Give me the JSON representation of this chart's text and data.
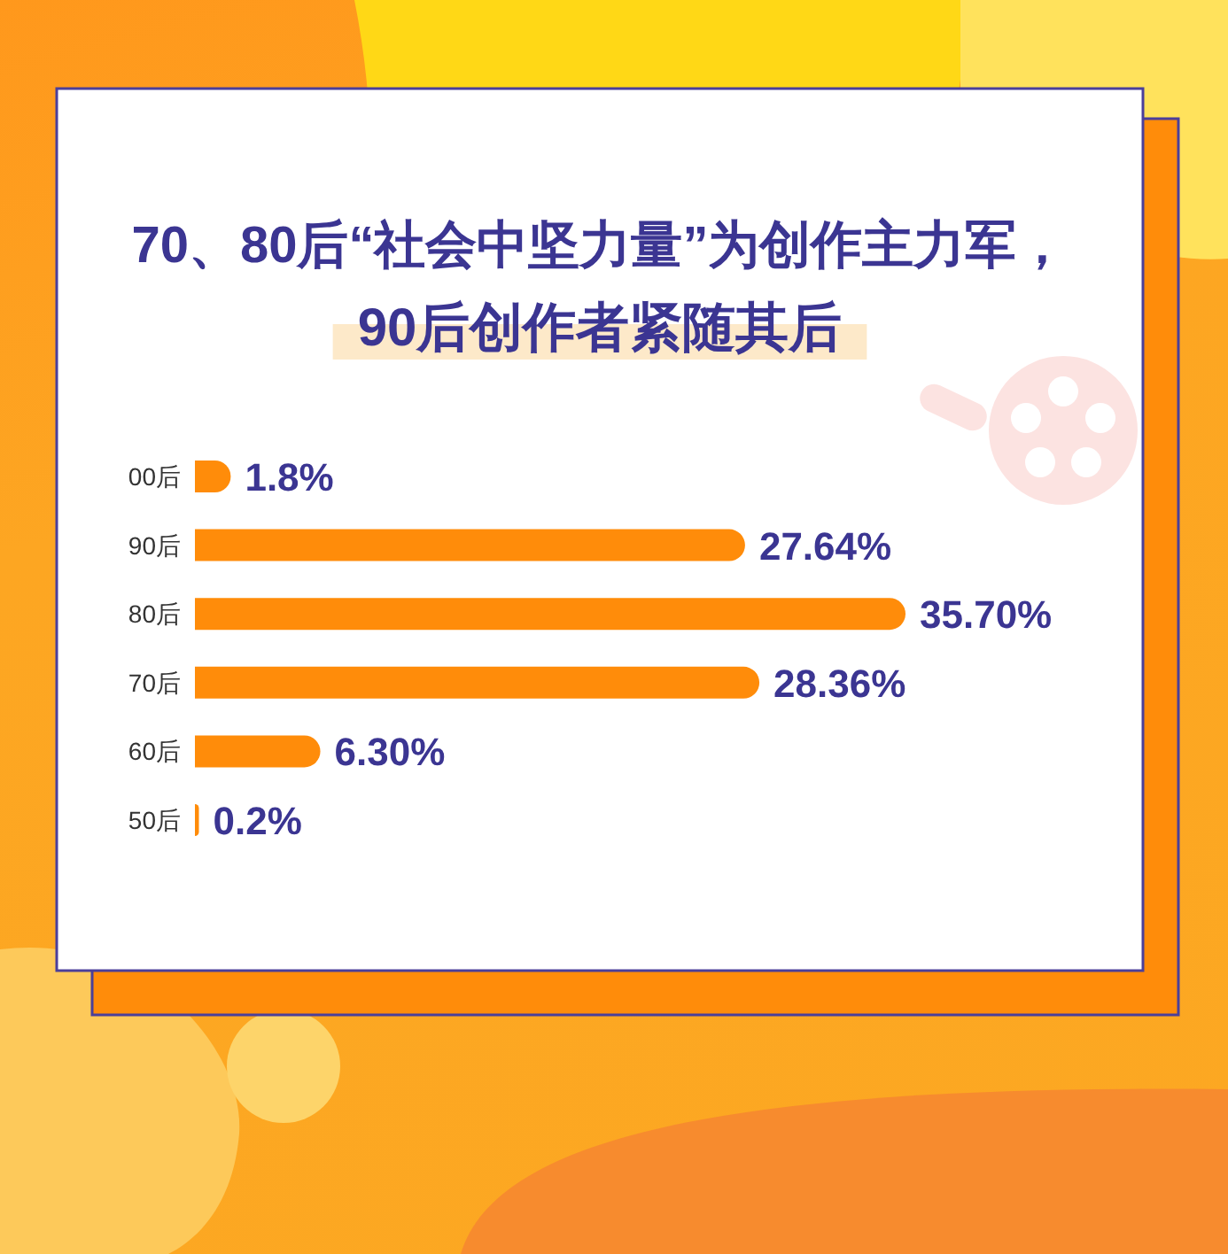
{
  "chart_data": {
    "type": "bar",
    "orientation": "horizontal",
    "title": "70、80后“社会中坚力量”为创作主力军，",
    "subtitle": "90后创作者紧随其后",
    "categories": [
      "00后",
      "90后",
      "80后",
      "70后",
      "60后",
      "50后"
    ],
    "values": [
      1.8,
      27.64,
      35.7,
      28.36,
      6.3,
      0.2
    ],
    "value_labels": [
      "1.8%",
      "27.64%",
      "35.70%",
      "28.36%",
      "6.30%",
      "0.2%"
    ],
    "color": "#ff8c0a"
  }
}
